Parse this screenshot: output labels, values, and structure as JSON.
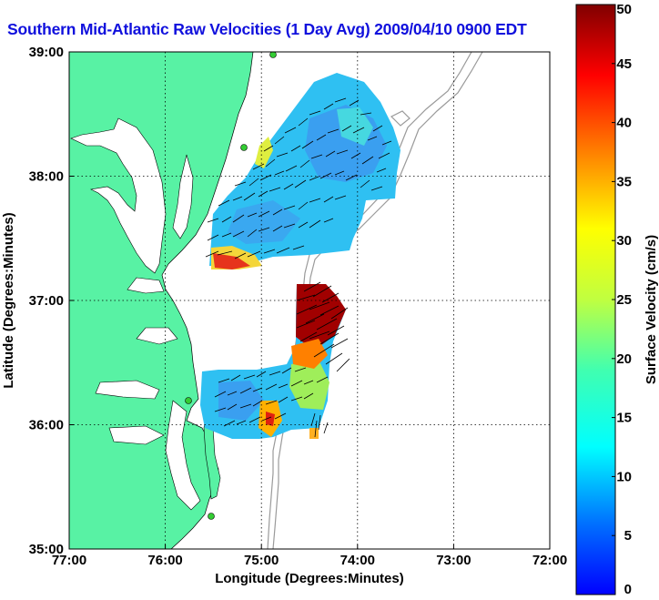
{
  "title": "Southern Mid-Atlantic Raw Velocities (1 Day Avg) 2009/04/10 0900 EDT",
  "map": {
    "x_axis_label": "Longitude (Degrees:Minutes)",
    "y_axis_label": "Latitude (Degrees:Minutes)",
    "x_ticks": [
      {
        "value": -77,
        "label": "77:00"
      },
      {
        "value": -76,
        "label": "76:00"
      },
      {
        "value": -75,
        "label": "75:00"
      },
      {
        "value": -74,
        "label": "74:00"
      },
      {
        "value": -73,
        "label": "73:00"
      },
      {
        "value": -72,
        "label": "72:00"
      }
    ],
    "y_ticks": [
      {
        "value": 39,
        "label": "39:00"
      },
      {
        "value": 38,
        "label": "38:00"
      },
      {
        "value": 37,
        "label": "37:00"
      },
      {
        "value": 36,
        "label": "36:00"
      },
      {
        "value": 35,
        "label": "35:00"
      }
    ],
    "lon_range": [
      -77,
      -72
    ],
    "lat_range": [
      35,
      39
    ],
    "grid": "dotted",
    "land_color": "#58f2a4",
    "water_color": "#ffffff",
    "bathymetry_color": "#9a9a9a"
  },
  "colorbar": {
    "label": "Surface Velocity (cm/s)",
    "min": 0,
    "max": 50,
    "ticks": [
      {
        "value": 0,
        "label": "0"
      },
      {
        "value": 5,
        "label": "5"
      },
      {
        "value": 10,
        "label": "10"
      },
      {
        "value": 15,
        "label": "15"
      },
      {
        "value": 20,
        "label": "20"
      },
      {
        "value": 25,
        "label": "25"
      },
      {
        "value": 30,
        "label": "30"
      },
      {
        "value": 35,
        "label": "35"
      },
      {
        "value": 40,
        "label": "40"
      },
      {
        "value": 45,
        "label": "45"
      },
      {
        "value": 50,
        "label": "50"
      }
    ],
    "colormap": "jet"
  }
}
